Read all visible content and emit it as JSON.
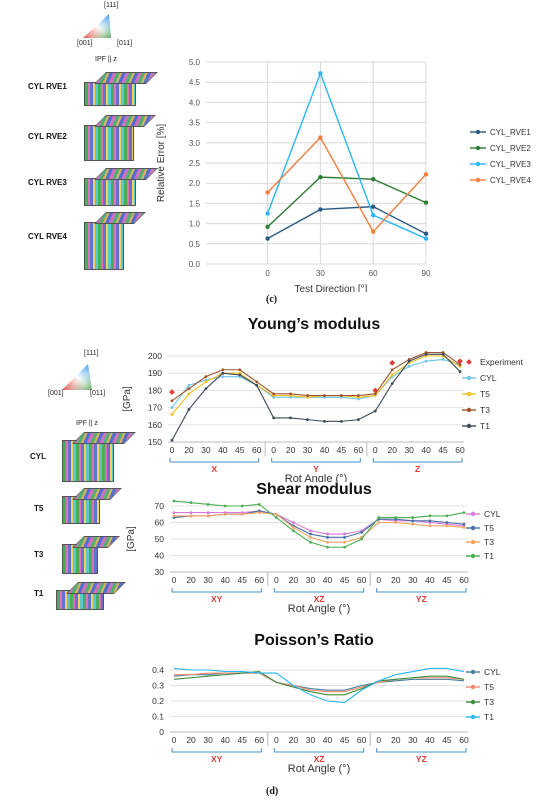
{
  "panel_c": {
    "caption": "(c)",
    "ipf": {
      "hkl_top": "[111]",
      "hkl_left": "[001]",
      "hkl_right": "[011]",
      "label": "IPF || z"
    },
    "samples": [
      "CYL RVE1",
      "CYL RVE2",
      "CYL RVE3",
      "CYL RVE4"
    ]
  },
  "panel_d": {
    "caption": "(d)",
    "ipf": {
      "hkl_top": "[111]",
      "hkl_left": "[001]",
      "hkl_right": "[011]",
      "label": "IPF || z"
    },
    "samples": [
      "CYL",
      "T5",
      "T3",
      "T1"
    ]
  },
  "colors": {
    "cyl_rve1": "#2a5a86",
    "cyl_rve2": "#2e7d32",
    "cyl_rve3": "#29b6f6",
    "cyl_rve4": "#f57c3a",
    "cyl": "#6ec6e8",
    "t5": "#f0c020",
    "t3": "#a0522d",
    "t1": "#3c4a5a",
    "shear_cyl": "#d57ad9",
    "shear_t5": "#4a6fa5",
    "shear_t3": "#f4a460",
    "shear_t1": "#4caf50",
    "pr_cyl": "#4a7c9c",
    "pr_t5": "#f08c6c",
    "pr_t3": "#3d8b3d",
    "pr_t1": "#29b6f6",
    "experiment": "#e53935",
    "group_label": "#e53935",
    "bracket": "#4a90c8"
  },
  "chart_data": [
    {
      "id": "relative-error",
      "type": "line",
      "x": [
        0,
        30,
        60,
        90
      ],
      "xlabel": "Test Direction [°]",
      "ylabel": "Relative Error [%]",
      "xlim": [
        -35,
        90
      ],
      "ylim": [
        0,
        5
      ],
      "yticks": [
        "0.0",
        "0.5",
        "1.0",
        "1.5",
        "2.0",
        "2.5",
        "3.0",
        "3.5",
        "4.0",
        "4.5",
        "5.0"
      ],
      "xticks": [
        "0",
        "30",
        "60",
        "90"
      ],
      "grid": true,
      "legend": "right",
      "series": [
        {
          "name": "CYL_RVE1",
          "values": [
            0.63,
            1.35,
            1.42,
            0.75
          ]
        },
        {
          "name": "CYL_RVE2",
          "values": [
            0.92,
            2.15,
            2.1,
            1.52
          ]
        },
        {
          "name": "CYL_RVE3",
          "values": [
            1.25,
            4.72,
            1.21,
            0.63
          ]
        },
        {
          "name": "CYL_RVE4",
          "values": [
            1.77,
            3.13,
            0.8,
            2.22
          ]
        }
      ]
    },
    {
      "id": "youngs-modulus",
      "type": "line",
      "title": "Young’s modulus",
      "ylabel": "[GPa]",
      "xlabel": "Rot Angle (°)",
      "ylim": [
        150,
        200
      ],
      "yticks": [
        "150",
        "160",
        "170",
        "180",
        "190",
        "200"
      ],
      "tick_labels": [
        "0",
        "20",
        "30",
        "40",
        "45",
        "60",
        "0",
        "20",
        "30",
        "40",
        "45",
        "60",
        "0",
        "20",
        "30",
        "40",
        "45",
        "60"
      ],
      "groups": [
        "X",
        "Y",
        "Z"
      ],
      "legend": "right",
      "series": [
        {
          "name": "Experiment",
          "values": [
            179,
            null,
            null,
            null,
            null,
            null,
            null,
            null,
            null,
            null,
            null,
            null,
            180,
            196,
            null,
            null,
            null,
            197
          ]
        },
        {
          "name": "CYL",
          "values": [
            170,
            183,
            186,
            188,
            188,
            183,
            176,
            176,
            176,
            176,
            176,
            175,
            177,
            188,
            194,
            197,
            198,
            195
          ]
        },
        {
          "name": "T5",
          "values": [
            166,
            178,
            185,
            190,
            190,
            183,
            177,
            177,
            176,
            177,
            177,
            176,
            177,
            189,
            196,
            200,
            200,
            194
          ]
        },
        {
          "name": "T3",
          "values": [
            174,
            181,
            188,
            192,
            192,
            185,
            178,
            178,
            177,
            177,
            177,
            177,
            178,
            192,
            198,
            202,
            202,
            195
          ]
        },
        {
          "name": "T1",
          "values": [
            151,
            169,
            181,
            190,
            189,
            183,
            164,
            164,
            163,
            162,
            162,
            163,
            168,
            184,
            197,
            201,
            201,
            191
          ]
        }
      ]
    },
    {
      "id": "shear-modulus",
      "type": "line",
      "title": "Shear modulus",
      "ylabel": "[GPa]",
      "xlabel": "Rot Angle (°)",
      "ylim": [
        30,
        70
      ],
      "yticks": [
        "30",
        "40",
        "50",
        "60",
        "70"
      ],
      "tick_labels": [
        "0",
        "20",
        "30",
        "40",
        "45",
        "60",
        "0",
        "20",
        "30",
        "40",
        "45",
        "60",
        "0",
        "20",
        "30",
        "40",
        "45",
        "60"
      ],
      "groups": [
        "XY",
        "XZ",
        "YZ"
      ],
      "legend": "right",
      "series": [
        {
          "name": "CYL",
          "values": [
            66,
            66,
            66,
            66,
            66,
            67,
            65,
            60,
            55,
            53,
            53,
            55,
            62,
            61,
            61,
            60,
            59,
            58
          ]
        },
        {
          "name": "T5",
          "values": [
            63,
            64,
            64,
            65,
            65,
            67,
            65,
            58,
            53,
            51,
            51,
            54,
            62,
            62,
            61,
            61,
            60,
            59
          ]
        },
        {
          "name": "T3",
          "values": [
            64,
            64,
            64,
            65,
            65,
            66,
            65,
            57,
            51,
            48,
            48,
            51,
            60,
            60,
            59,
            58,
            58,
            57
          ]
        },
        {
          "name": "T1",
          "values": [
            73,
            72,
            71,
            70,
            70,
            71,
            63,
            55,
            48,
            45,
            45,
            50,
            63,
            63,
            63,
            64,
            64,
            66
          ]
        }
      ]
    },
    {
      "id": "poissons-ratio",
      "type": "line",
      "title": "Poisson’s Ratio",
      "xlabel": "Rot Angle (°)",
      "ylim": [
        0,
        0.4
      ],
      "yticks": [
        "0",
        "0.1",
        "0.2",
        "0.3",
        "0.4"
      ],
      "tick_labels": [
        "0",
        "20",
        "30",
        "40",
        "45",
        "60",
        "0",
        "20",
        "30",
        "40",
        "45",
        "60",
        "0",
        "20",
        "30",
        "40",
        "45",
        "60"
      ],
      "groups": [
        "XY",
        "XZ",
        "YZ"
      ],
      "legend": "right",
      "series": [
        {
          "name": "CYL",
          "values": [
            0.36,
            0.37,
            0.37,
            0.38,
            0.38,
            0.38,
            0.32,
            0.3,
            0.28,
            0.27,
            0.27,
            0.3,
            0.32,
            0.33,
            0.34,
            0.34,
            0.34,
            0.33
          ]
        },
        {
          "name": "T5",
          "values": [
            0.37,
            0.37,
            0.38,
            0.38,
            0.38,
            0.38,
            0.32,
            0.3,
            0.27,
            0.26,
            0.26,
            0.29,
            0.32,
            0.34,
            0.35,
            0.35,
            0.35,
            0.34
          ]
        },
        {
          "name": "T3",
          "values": [
            0.34,
            0.35,
            0.36,
            0.37,
            0.38,
            0.39,
            0.32,
            0.29,
            0.26,
            0.24,
            0.24,
            0.28,
            0.33,
            0.34,
            0.35,
            0.36,
            0.36,
            0.34
          ]
        },
        {
          "name": "T1",
          "values": [
            0.41,
            0.4,
            0.4,
            0.39,
            0.39,
            0.38,
            0.38,
            0.3,
            0.24,
            0.2,
            0.19,
            0.27,
            0.33,
            0.37,
            0.39,
            0.41,
            0.41,
            0.39
          ]
        }
      ]
    }
  ]
}
